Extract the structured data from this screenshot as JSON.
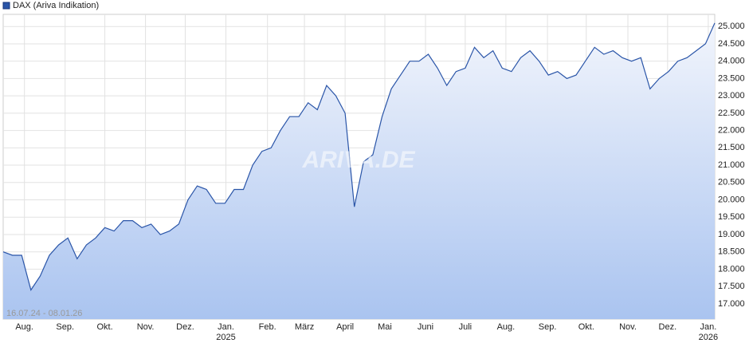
{
  "chart_data": {
    "type": "line",
    "legend": {
      "label": "DAX (Ariva Indikation)",
      "position": "top-left"
    },
    "range_label": "16.07.24 - 08.01.26",
    "watermark": "ARIVA.DE",
    "series": [
      {
        "name": "DAX (Ariva Indikation)",
        "color": "#2a55a8",
        "values": [
          18500,
          18400,
          18400,
          17400,
          17800,
          18400,
          18700,
          18900,
          18300,
          18700,
          18900,
          19200,
          19100,
          19400,
          19400,
          19200,
          19300,
          19000,
          19100,
          19300,
          20000,
          20400,
          20300,
          19900,
          19900,
          20300,
          20300,
          21000,
          21400,
          21500,
          22000,
          22400,
          22400,
          22800,
          22600,
          23300,
          23000,
          22500,
          19800,
          21100,
          21300,
          22400,
          23200,
          23600,
          24000,
          24000,
          24200,
          23800,
          23300,
          23700,
          23800,
          24400,
          24100,
          24300,
          23800,
          23700,
          24100,
          24300,
          24000,
          23600,
          23700,
          23500,
          23600,
          24000,
          24400,
          24200,
          24300,
          24100,
          24000,
          24100,
          23200,
          23500,
          23700,
          24000,
          24100,
          24300,
          24500,
          25100
        ]
      }
    ],
    "xlim": [
      0,
      77
    ],
    "xticks": [
      {
        "value": 2.3,
        "label": "Aug."
      },
      {
        "value": 6.7,
        "label": "Sep."
      },
      {
        "value": 11,
        "label": "Okt."
      },
      {
        "value": 15.4,
        "label": "Nov."
      },
      {
        "value": 19.7,
        "label": "Dez."
      },
      {
        "value": 24.1,
        "label": "Jan.",
        "year": "2025"
      },
      {
        "value": 28.6,
        "label": "Feb."
      },
      {
        "value": 32.6,
        "label": "März"
      },
      {
        "value": 37,
        "label": "April"
      },
      {
        "value": 41.3,
        "label": "Mai"
      },
      {
        "value": 45.7,
        "label": "Juni"
      },
      {
        "value": 50,
        "label": "Juli"
      },
      {
        "value": 54.4,
        "label": "Aug."
      },
      {
        "value": 58.9,
        "label": "Sep."
      },
      {
        "value": 63.1,
        "label": "Okt."
      },
      {
        "value": 67.6,
        "label": "Nov."
      },
      {
        "value": 71.9,
        "label": "Dez."
      },
      {
        "value": 76.3,
        "label": "Jan.",
        "year": "2026"
      }
    ],
    "ylim": [
      16560,
      25350
    ],
    "yticks": [
      {
        "value": 17000,
        "label": "17.000"
      },
      {
        "value": 17500,
        "label": "17.500"
      },
      {
        "value": 18000,
        "label": "18.000"
      },
      {
        "value": 18500,
        "label": "18.500"
      },
      {
        "value": 19000,
        "label": "19.000"
      },
      {
        "value": 19500,
        "label": "19.500"
      },
      {
        "value": 20000,
        "label": "20.000"
      },
      {
        "value": 20500,
        "label": "20.500"
      },
      {
        "value": 21000,
        "label": "21.000"
      },
      {
        "value": 21500,
        "label": "21.500"
      },
      {
        "value": 22000,
        "label": "22.000"
      },
      {
        "value": 22500,
        "label": "22.500"
      },
      {
        "value": 23000,
        "label": "23.000"
      },
      {
        "value": 23500,
        "label": "23.500"
      },
      {
        "value": 24000,
        "label": "24.000"
      },
      {
        "value": 24500,
        "label": "24.500"
      },
      {
        "value": 25000,
        "label": "25.000"
      }
    ],
    "grid": true
  }
}
